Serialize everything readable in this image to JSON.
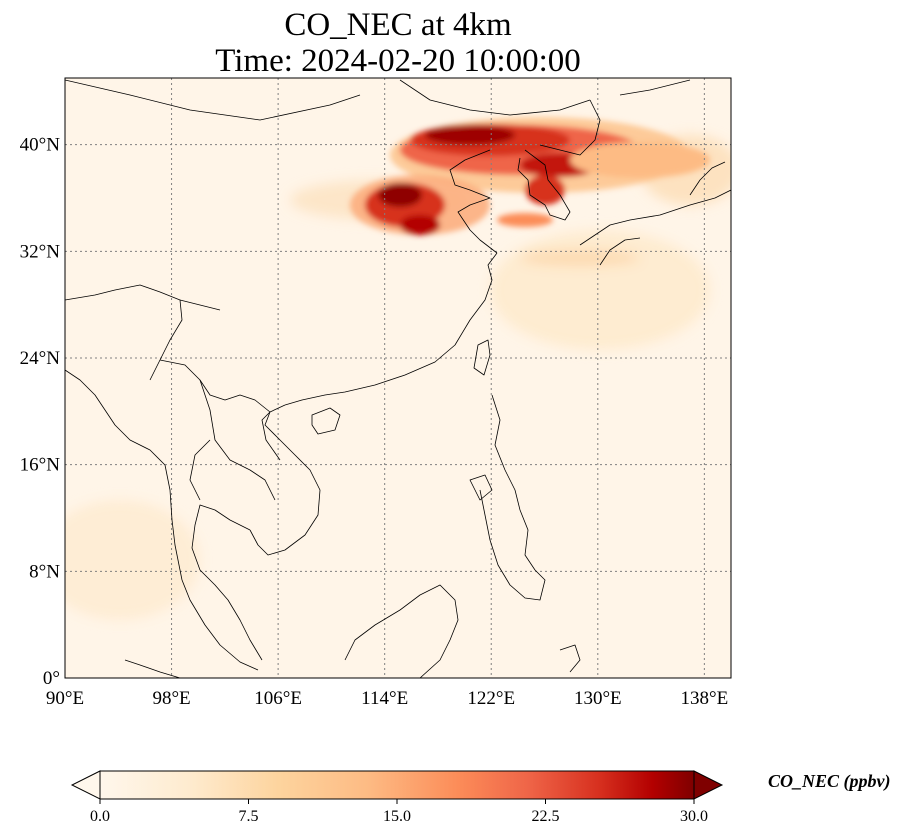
{
  "title": {
    "line1": "CO_NEC at 4km",
    "line2": "Time: 2024-02-20 10:00:00"
  },
  "map": {
    "lon_range": [
      90,
      140
    ],
    "lat_range": [
      0,
      45
    ],
    "lon_ticks": [
      {
        "value": 90,
        "label": "90°E"
      },
      {
        "value": 98,
        "label": "98°E"
      },
      {
        "value": 106,
        "label": "106°E"
      },
      {
        "value": 114,
        "label": "114°E"
      },
      {
        "value": 122,
        "label": "122°E"
      },
      {
        "value": 130,
        "label": "130°E"
      },
      {
        "value": 138,
        "label": "138°E"
      }
    ],
    "lat_ticks": [
      {
        "value": 0,
        "label": "0°"
      },
      {
        "value": 8,
        "label": "8°N"
      },
      {
        "value": 16,
        "label": "16°N"
      },
      {
        "value": 24,
        "label": "24°N"
      },
      {
        "value": 32,
        "label": "32°N"
      },
      {
        "value": 40,
        "label": "40°N"
      }
    ],
    "gridlines": true,
    "colormap": "OrRd",
    "colors": {
      "low": "#fff7ec",
      "mid": "#fc8d59",
      "high": "#7f0000",
      "coast": "#000000",
      "grid": "#808080"
    }
  },
  "colorbar": {
    "label": "CO_NEC (ppbv)",
    "min": 0,
    "max": 30,
    "extend": "both",
    "ticks": [
      {
        "value": 0,
        "label": "0.0"
      },
      {
        "value": 7.5,
        "label": "7.5"
      },
      {
        "value": 15,
        "label": "15.0"
      },
      {
        "value": 22.5,
        "label": "22.5"
      },
      {
        "value": 30,
        "label": "30.0"
      }
    ]
  }
}
